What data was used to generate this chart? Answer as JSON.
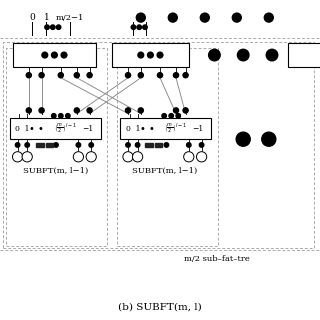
{
  "bg_color": "#ffffff",
  "title": "(b) SUBFT(m, l)",
  "subtitle": "m/2 sub–fat–tre",
  "dot_color": "#000000",
  "switch_box_edge": "#000000",
  "line_color": "#999999",
  "dashed_color": "#aaaaaa",
  "top_label_0": "0",
  "top_label_1": "1",
  "top_label_m": "m/2−1"
}
